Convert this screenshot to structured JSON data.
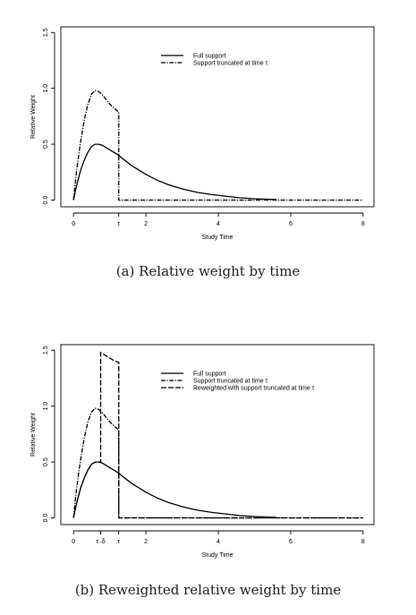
{
  "chart_data": [
    {
      "type": "line",
      "xlabel": "Study Time",
      "ylabel": "Relative Weight",
      "xlim": [
        -0.35,
        8.3
      ],
      "ylim": [
        -0.06,
        1.55
      ],
      "x_ticks": [
        {
          "value": 0,
          "label": "0"
        },
        {
          "value": 1.25,
          "label": "τ"
        },
        {
          "value": 2,
          "label": "2"
        },
        {
          "value": 4,
          "label": "4"
        },
        {
          "value": 6,
          "label": "6"
        },
        {
          "value": 8,
          "label": "8"
        }
      ],
      "y_ticks": [
        {
          "value": 0,
          "label": "0.0"
        },
        {
          "value": 0.5,
          "label": "0.5"
        },
        {
          "value": 1.0,
          "label": "1.0"
        },
        {
          "value": 1.5,
          "label": "1.5"
        }
      ],
      "legend": {
        "position": "top-center"
      },
      "series": [
        {
          "name": "Full support",
          "style": "solid",
          "x": [
            0,
            0.05,
            0.1,
            0.2,
            0.3,
            0.4,
            0.5,
            0.6,
            0.7,
            0.8,
            0.9,
            1.0,
            1.1,
            1.25,
            1.4,
            1.6,
            1.8,
            2.0,
            2.3,
            2.6,
            3.0,
            3.4,
            3.8,
            4.2,
            4.6,
            5.0,
            5.6
          ],
          "y": [
            0,
            0.08,
            0.15,
            0.27,
            0.36,
            0.43,
            0.48,
            0.5,
            0.5,
            0.49,
            0.47,
            0.45,
            0.43,
            0.4,
            0.36,
            0.31,
            0.27,
            0.23,
            0.18,
            0.14,
            0.1,
            0.07,
            0.05,
            0.035,
            0.02,
            0.012,
            0.005
          ]
        },
        {
          "name": "Support truncated at time τ",
          "style": "dotdash",
          "x": [
            0,
            0.05,
            0.1,
            0.2,
            0.3,
            0.4,
            0.5,
            0.6,
            0.7,
            0.8,
            0.9,
            1.0,
            1.1,
            1.2,
            1.25,
            1.25,
            8.0
          ],
          "y": [
            0,
            0.16,
            0.3,
            0.53,
            0.72,
            0.86,
            0.95,
            0.98,
            0.97,
            0.94,
            0.9,
            0.86,
            0.83,
            0.8,
            0.79,
            0,
            0
          ]
        }
      ]
    },
    {
      "type": "line",
      "xlabel": "Study Time",
      "ylabel": "Relative Weight",
      "xlim": [
        -0.35,
        8.3
      ],
      "ylim": [
        -0.06,
        1.55
      ],
      "x_ticks": [
        {
          "value": 0,
          "label": "0"
        },
        {
          "value": 0.75,
          "label": "τ₋δ"
        },
        {
          "value": 1.25,
          "label": "τ"
        },
        {
          "value": 2,
          "label": "2"
        },
        {
          "value": 4,
          "label": "4"
        },
        {
          "value": 6,
          "label": "6"
        },
        {
          "value": 8,
          "label": "8"
        }
      ],
      "y_ticks": [
        {
          "value": 0,
          "label": "0.0"
        },
        {
          "value": 0.5,
          "label": "0.5"
        },
        {
          "value": 1.0,
          "label": "1.0"
        },
        {
          "value": 1.5,
          "label": "1.5"
        }
      ],
      "legend": {
        "position": "top-center"
      },
      "series": [
        {
          "name": "Full support",
          "style": "solid",
          "x": [
            0,
            0.05,
            0.1,
            0.2,
            0.3,
            0.4,
            0.5,
            0.6,
            0.7,
            0.8,
            0.9,
            1.0,
            1.1,
            1.25,
            1.4,
            1.6,
            1.8,
            2.0,
            2.3,
            2.6,
            3.0,
            3.4,
            3.8,
            4.2,
            4.6,
            5.0,
            5.6
          ],
          "y": [
            0,
            0.08,
            0.15,
            0.27,
            0.36,
            0.43,
            0.48,
            0.5,
            0.5,
            0.49,
            0.47,
            0.45,
            0.43,
            0.4,
            0.36,
            0.31,
            0.27,
            0.23,
            0.18,
            0.14,
            0.1,
            0.07,
            0.05,
            0.035,
            0.02,
            0.012,
            0.005
          ]
        },
        {
          "name": "Support truncated at time τ",
          "style": "dotdash",
          "x": [
            0,
            0.05,
            0.1,
            0.2,
            0.3,
            0.4,
            0.5,
            0.6,
            0.7,
            0.8,
            0.9,
            1.0,
            1.1,
            1.2,
            1.25,
            1.25,
            8.0
          ],
          "y": [
            0,
            0.16,
            0.3,
            0.53,
            0.72,
            0.86,
            0.95,
            0.98,
            0.97,
            0.94,
            0.9,
            0.86,
            0.83,
            0.8,
            0.79,
            0,
            0
          ]
        },
        {
          "name": "Reweighted with support truncated at time τ",
          "style": "dashed",
          "x": [
            0,
            0.05,
            0.1,
            0.2,
            0.3,
            0.4,
            0.5,
            0.6,
            0.7,
            0.75,
            0.75,
            0.85,
            1.0,
            1.1,
            1.25,
            1.25,
            8.0
          ],
          "y": [
            0,
            0.08,
            0.15,
            0.27,
            0.36,
            0.43,
            0.48,
            0.5,
            0.5,
            0.5,
            1.48,
            1.46,
            1.43,
            1.41,
            1.39,
            0,
            0
          ]
        }
      ]
    }
  ],
  "captions": {
    "a": "(a) Relative weight by time",
    "b": "(b) Reweighted relative weight by time"
  }
}
